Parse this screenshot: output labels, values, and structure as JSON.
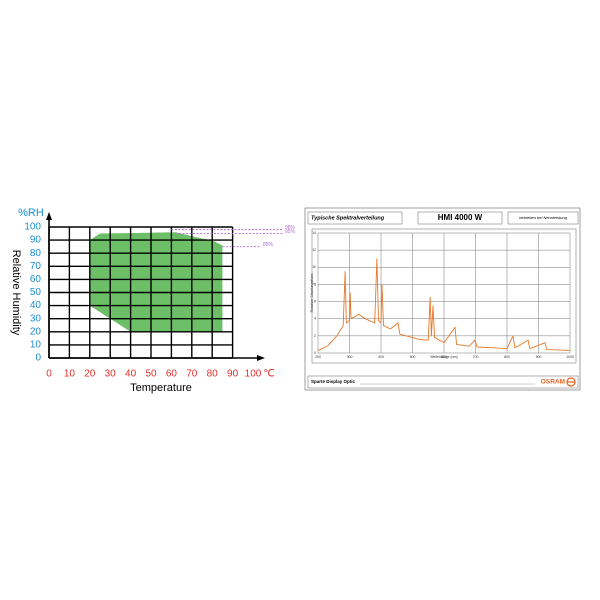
{
  "chart_data": [
    {
      "type": "area",
      "y_unit_label": "%RH",
      "ylabel": "Relative Humidity",
      "xlabel": "Temperature",
      "x_unit_label": "℃",
      "x": [
        20,
        25,
        62,
        81,
        85,
        85,
        40,
        20
      ],
      "values": [
        90,
        95,
        96,
        89,
        86,
        20,
        20,
        40
      ],
      "color": "#6dbf67",
      "xlim": [
        0,
        100
      ],
      "ylim": [
        0,
        100
      ],
      "xticks": [
        0,
        10,
        20,
        30,
        40,
        50,
        60,
        70,
        80,
        90,
        100
      ],
      "yticks": [
        0,
        10,
        20,
        30,
        40,
        50,
        60,
        70,
        80,
        90,
        100
      ],
      "grid": true,
      "annotations": [
        {
          "label": "98%",
          "value": 98,
          "from": 60
        },
        {
          "label": "95%",
          "value": 95,
          "from": 62
        },
        {
          "label": "85%",
          "value": 85,
          "from": 85
        }
      ],
      "annotation_color": "#b36bd1"
    },
    {
      "type": "line",
      "title": "HMI 4000 W",
      "subtitle": "Typische Spektralverteilung",
      "note": "betrieben bei Nennleistung",
      "ylabel": "Relativer Strahlungsfluss",
      "xlabel": "Wellenlänge (nm)",
      "footer": "Sparte Display Optic",
      "brand": "OSRAM",
      "x": [
        200,
        230,
        260,
        280,
        286,
        290,
        300,
        302,
        305,
        330,
        350,
        380,
        387,
        392,
        400,
        403,
        408,
        430,
        454,
        460,
        500,
        520,
        550,
        556,
        560,
        565,
        570,
        600,
        635,
        640,
        680,
        698,
        705,
        760,
        800,
        819,
        825,
        867,
        872,
        921,
        926,
        1000
      ],
      "values": [
        0.3,
        0.8,
        2.0,
        3.2,
        9.5,
        3.5,
        3.8,
        7.0,
        4.0,
        4.5,
        4.0,
        3.5,
        11.0,
        3.8,
        3.5,
        8.0,
        3.2,
        2.8,
        3.5,
        2.2,
        1.8,
        1.6,
        1.5,
        6.5,
        2.0,
        5.5,
        1.8,
        1.2,
        3.0,
        1.0,
        0.8,
        1.5,
        0.7,
        0.6,
        0.5,
        2.0,
        0.6,
        1.5,
        0.5,
        1.2,
        0.4,
        0.3
      ],
      "color": "#e8782a",
      "xlim": [
        200,
        1000
      ],
      "ylim": [
        0,
        14
      ],
      "xticks": [
        200,
        300,
        400,
        500,
        600,
        700,
        800,
        900,
        1000
      ],
      "yticks": [
        0,
        2,
        4,
        6,
        8,
        10,
        12,
        14
      ],
      "grid": true
    }
  ]
}
